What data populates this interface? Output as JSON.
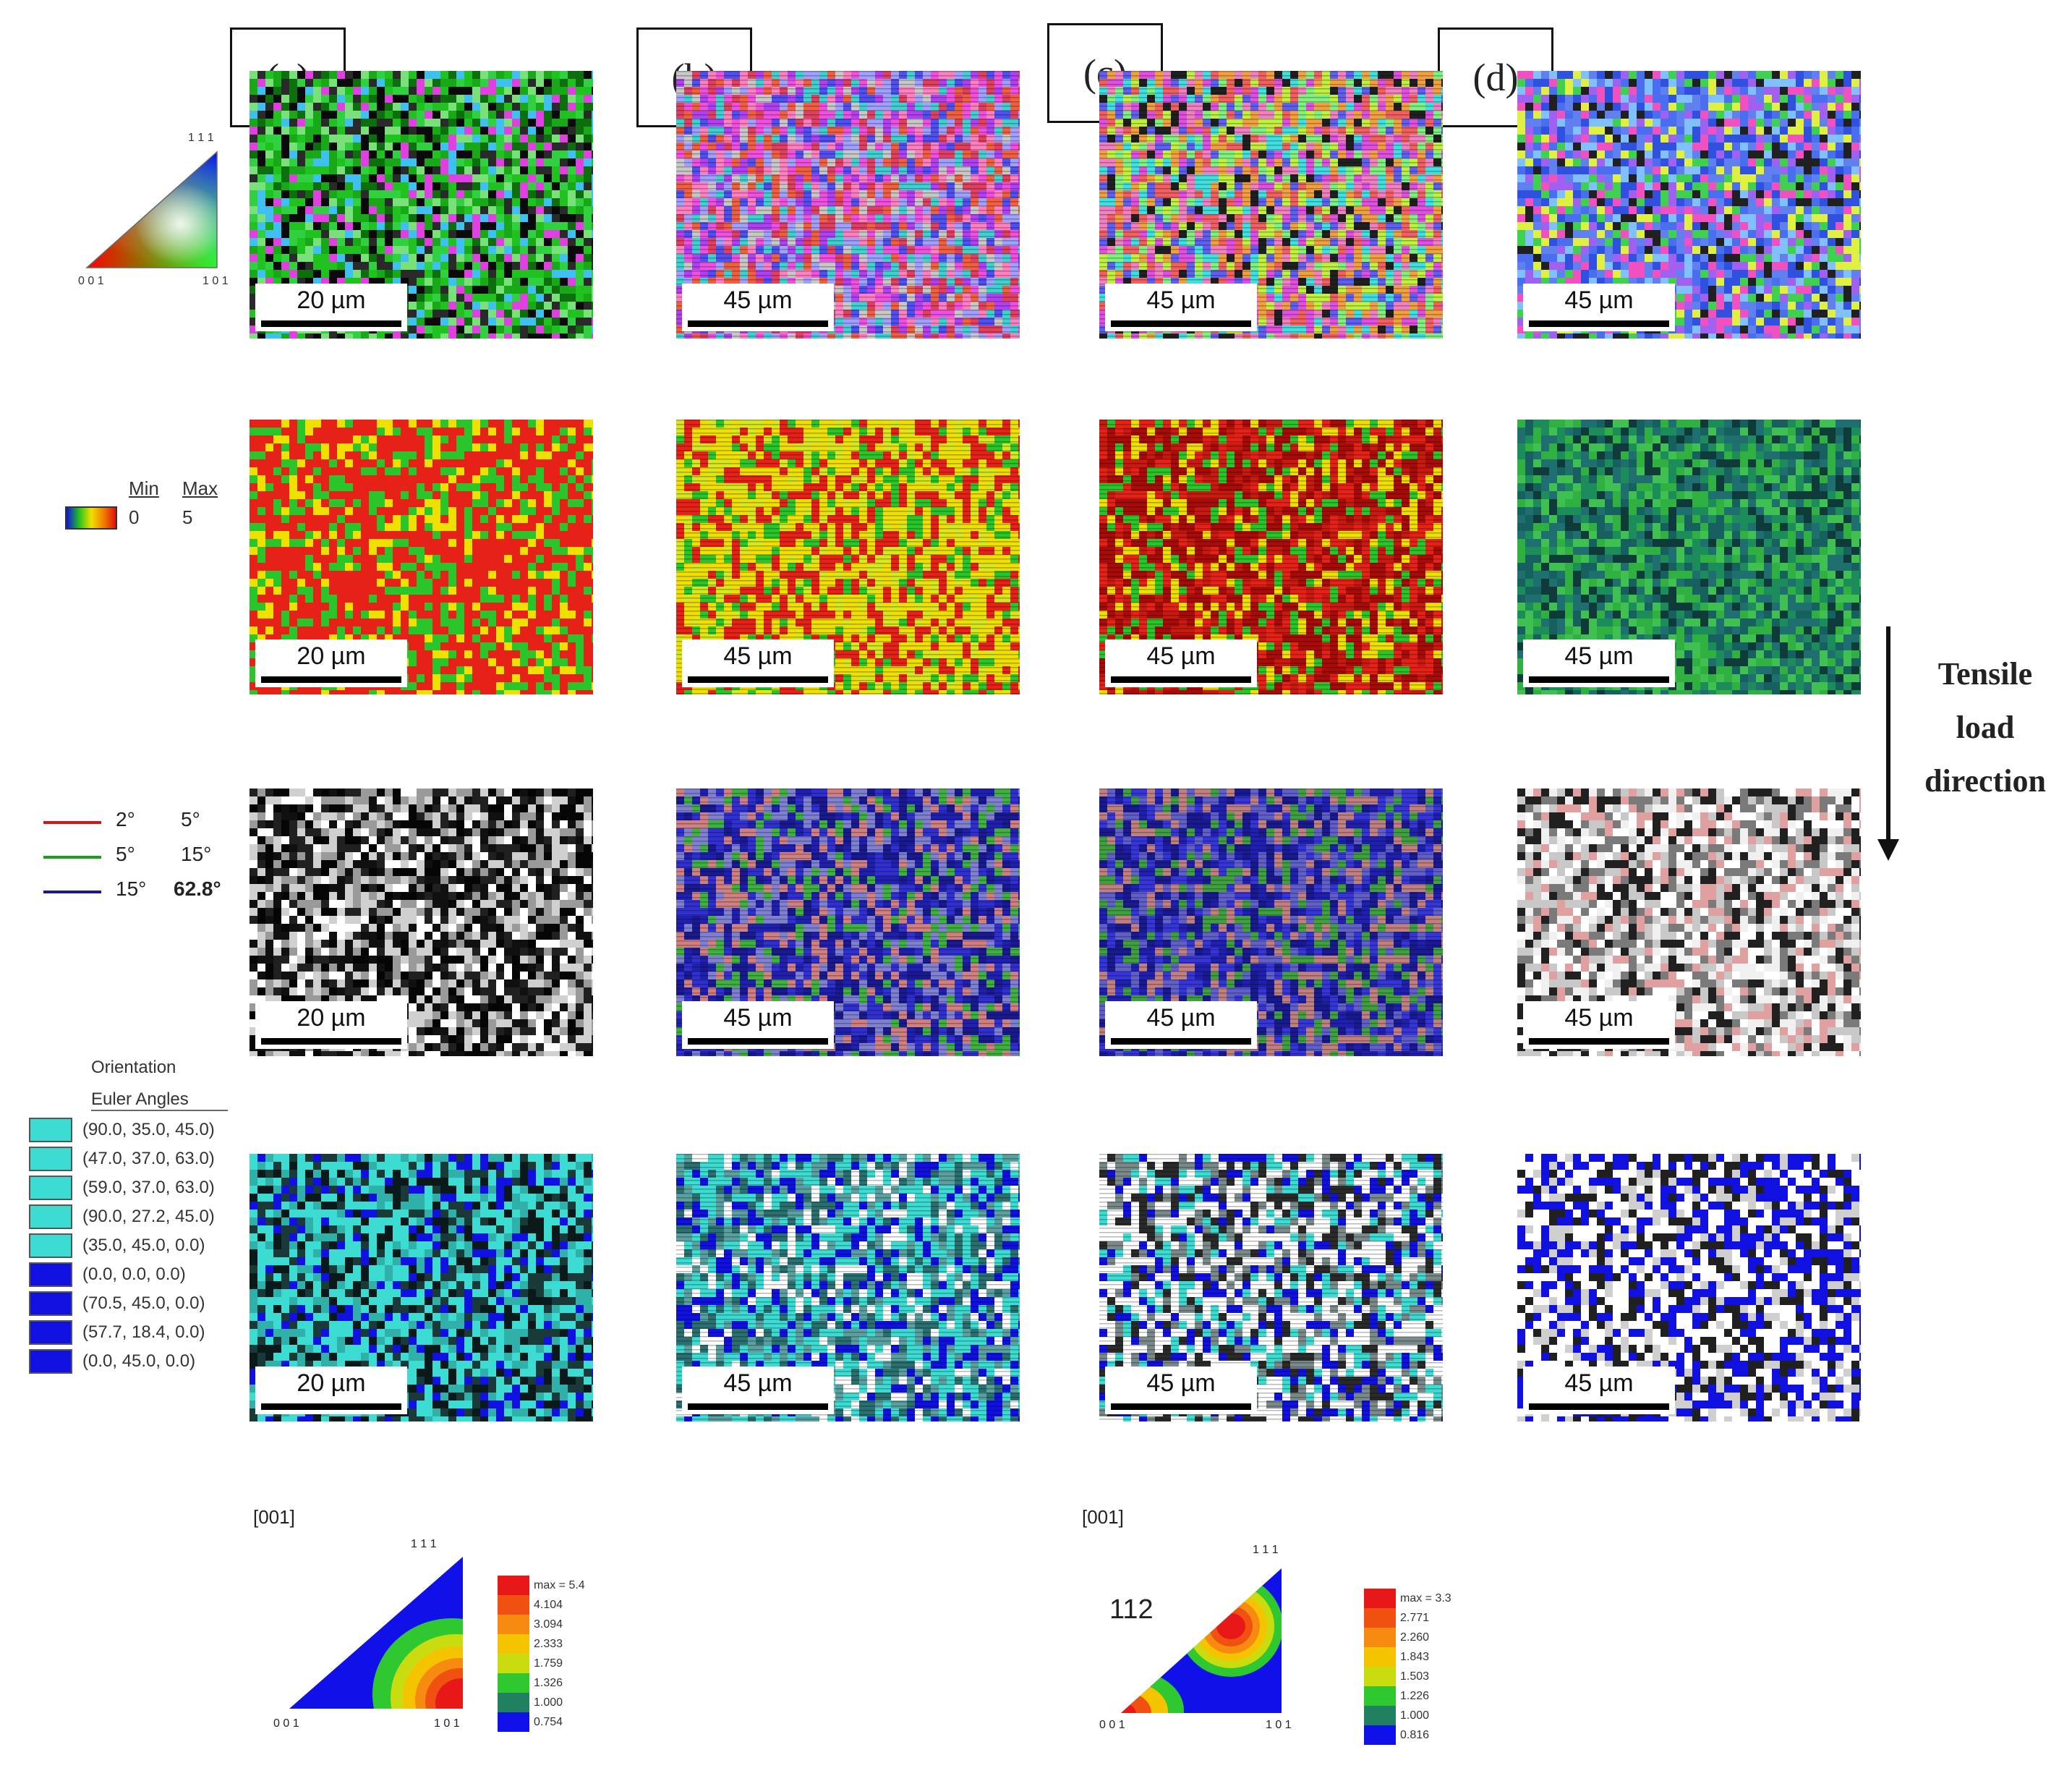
{
  "panel_labels": [
    "(a)",
    "(b)",
    "(c)",
    "(d)"
  ],
  "scale_bars": {
    "a": "20 µm",
    "b": "45 µm",
    "c": "45 µm",
    "d": "45 µm"
  },
  "ipf_key": {
    "top": "1 1 1",
    "left": "0 0 1",
    "right": "1 0 1"
  },
  "kam_legend": {
    "min_label": "Min",
    "max_label": "Max",
    "min_value": "0",
    "max_value": "5"
  },
  "boundary_legend": [
    {
      "from": "2°",
      "to": "5°",
      "color": "#d01818"
    },
    {
      "from": "5°",
      "to": "15°",
      "color": "#1aa01a"
    },
    {
      "from": "15°",
      "to": "62.8°",
      "color": "#1a1a8c"
    }
  ],
  "orientation_legend": {
    "title": "Orientation",
    "subtitle": "Euler Angles",
    "items": [
      {
        "label": "(90.0, 35.0, 45.0)",
        "color": "#3cdcd2"
      },
      {
        "label": "(47.0, 37.0, 63.0)",
        "color": "#3cdcd2"
      },
      {
        "label": "(59.0, 37.0, 63.0)",
        "color": "#3cdcd2"
      },
      {
        "label": "(90.0, 27.2, 45.0)",
        "color": "#3cdcd2"
      },
      {
        "label": "(35.0, 45.0, 0.0)",
        "color": "#3cdcd2"
      },
      {
        "label": "(0.0, 0.0, 0.0)",
        "color": "#1010e0"
      },
      {
        "label": "(70.5, 45.0, 0.0)",
        "color": "#1010e0"
      },
      {
        "label": "(57.7, 18.4, 0.0)",
        "color": "#1010e0"
      },
      {
        "label": "(0.0, 45.0, 0.0)",
        "color": "#1010e0"
      }
    ]
  },
  "arrow_label": [
    "Tensile",
    "load",
    "direction"
  ],
  "pole_figures": [
    {
      "direction": "[001]",
      "top": "1 1 1",
      "left": "0 0 1",
      "right": "1 0 1",
      "annotation": "",
      "colorbar": [
        "max = 5.4",
        "4.104",
        "3.094",
        "2.333",
        "1.759",
        "1.326",
        "1.000",
        "0.754"
      ]
    },
    {
      "direction": "[001]",
      "top": "1 1 1",
      "left": "0 0 1",
      "right": "1 0 1",
      "annotation": "112",
      "colorbar": [
        "max = 3.3",
        "2.771",
        "2.260",
        "1.843",
        "1.503",
        "1.226",
        "1.000",
        "0.816"
      ]
    }
  ],
  "colorbar_colors": [
    "#e81818",
    "#f05010",
    "#f78a10",
    "#f5c400",
    "#c8dc10",
    "#30c830",
    "#208060",
    "#1010e8"
  ]
}
